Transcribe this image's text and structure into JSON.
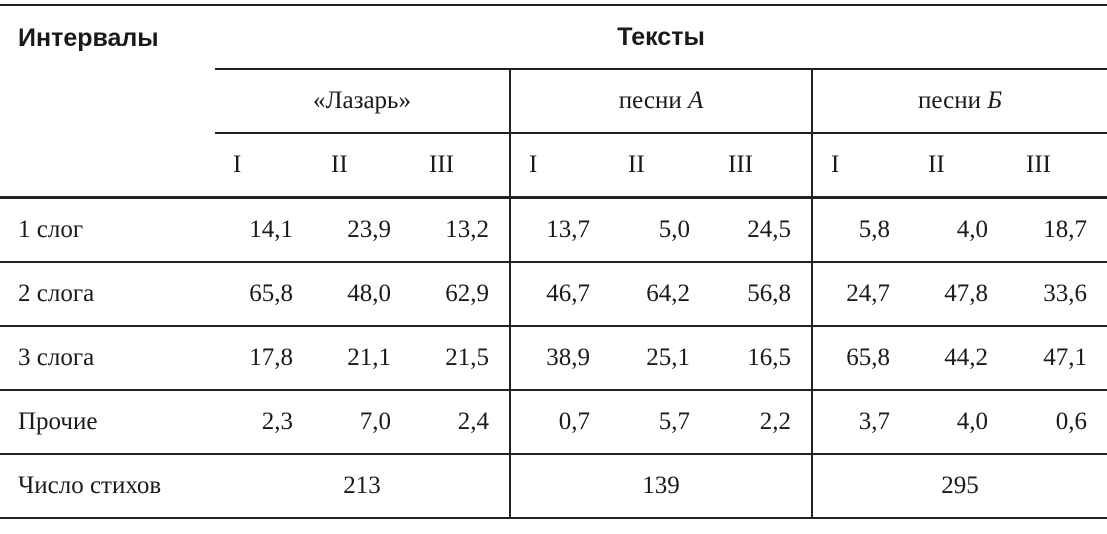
{
  "table": {
    "corner": "Интервалы",
    "span_title": "Тексты",
    "groups": [
      {
        "name": "«Лазарь»"
      },
      {
        "name": "песни",
        "italic": "А"
      },
      {
        "name": "песни",
        "italic": "Б"
      }
    ],
    "subcolumns": [
      [
        "I",
        "II",
        "III"
      ],
      [
        "I",
        "II",
        "III"
      ],
      [
        "I",
        "II",
        "III"
      ]
    ],
    "rows": [
      {
        "label": "1 слог",
        "cells": [
          "14,1",
          "23,9",
          "13,2",
          "13,7",
          "5,0",
          "24,5",
          "5,8",
          "4,0",
          "18,7"
        ]
      },
      {
        "label": "2 слога",
        "cells": [
          "65,8",
          "48,0",
          "62,9",
          "46,7",
          "64,2",
          "56,8",
          "24,7",
          "47,8",
          "33,6"
        ]
      },
      {
        "label": "3 слога",
        "cells": [
          "17,8",
          "21,1",
          "21,5",
          "38,9",
          "25,1",
          "16,5",
          "65,8",
          "44,2",
          "47,1"
        ]
      },
      {
        "label": "Прочие",
        "cells": [
          "2,3",
          "7,0",
          "2,4",
          "0,7",
          "5,7",
          "2,2",
          "3,7",
          "4,0",
          "0,6"
        ]
      }
    ],
    "total": {
      "label": "Число стихов",
      "values": [
        "213",
        "139",
        "295"
      ]
    }
  }
}
